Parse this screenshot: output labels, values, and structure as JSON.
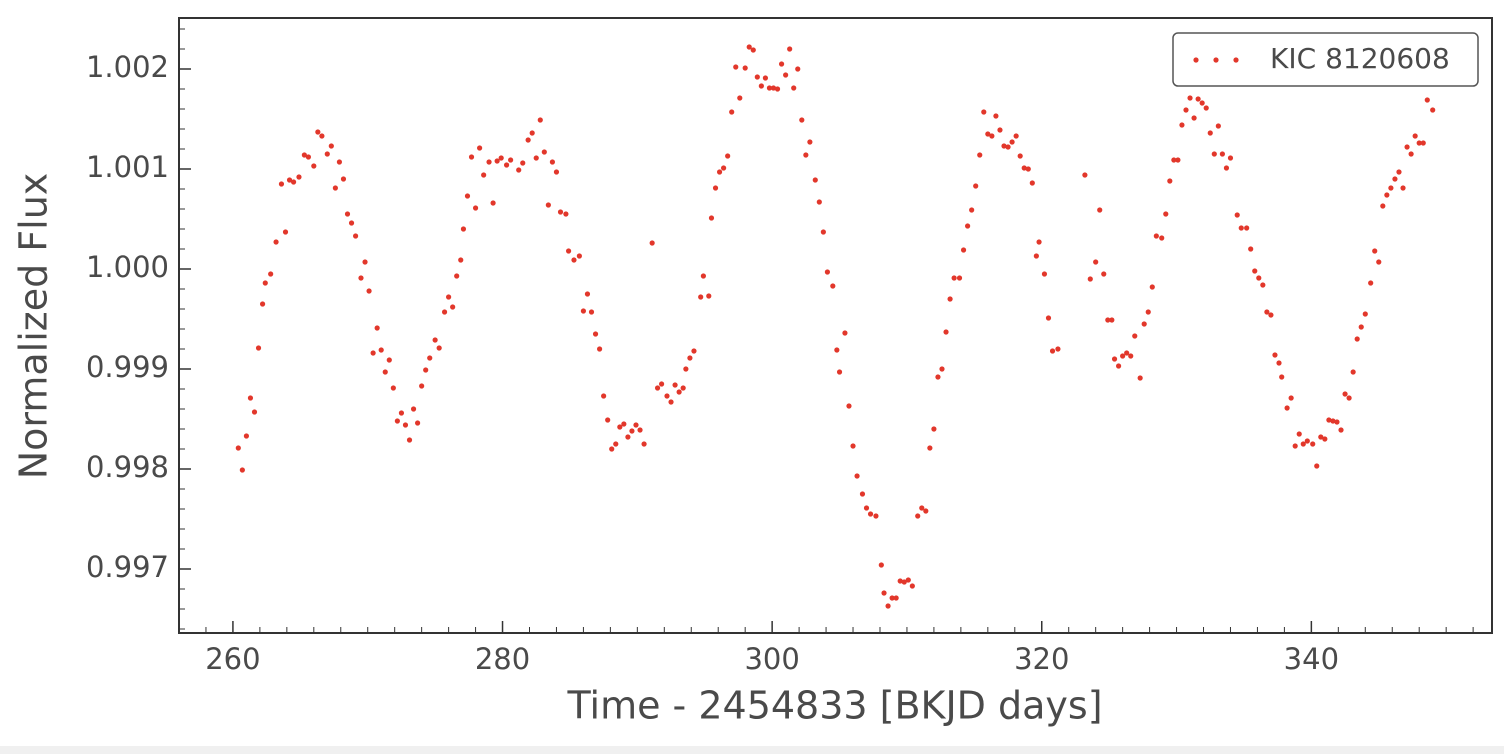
{
  "chart_data": {
    "type": "scatter",
    "xlabel": "Time - 2454833 [BKJD days]",
    "ylabel": "Normalized Flux",
    "xlim": [
      256.0,
      353.4
    ],
    "ylim": [
      0.99636,
      1.00251
    ],
    "xticks": [
      260,
      280,
      300,
      320,
      340
    ],
    "yticks": [
      0.997,
      0.998,
      0.999,
      {
        "value": 1,
        "label": "1.000"
      },
      1.001,
      1.002
    ],
    "xminorticks": [
      256,
      258,
      262,
      264,
      266,
      268,
      270,
      272,
      274,
      276,
      278,
      282,
      284,
      286,
      288,
      290,
      292,
      294,
      296,
      298,
      302,
      304,
      306,
      308,
      310,
      312,
      314,
      316,
      318,
      322,
      324,
      326,
      328,
      330,
      332,
      334,
      336,
      338,
      342,
      344,
      346,
      348,
      350,
      352
    ],
    "yminorticks": [
      0.9964,
      0.9966,
      0.9968,
      0.9972,
      0.9974,
      0.9976,
      0.9978,
      0.9982,
      0.9984,
      0.9986,
      0.9988,
      0.9992,
      0.9994,
      0.9996,
      0.9998,
      1.0002,
      1.0004,
      1.0006,
      1.0008,
      1.0012,
      1.0014,
      1.0016,
      1.0018,
      1.0022,
      1.0024
    ],
    "legend": "upper right",
    "x": [
      260.4,
      260.7,
      261.0,
      261.3,
      261.6,
      261.9,
      262.2,
      262.4,
      262.8,
      263.2,
      263.6,
      263.9,
      264.2,
      264.5,
      264.9,
      265.3,
      265.6,
      266.0,
      266.3,
      266.6,
      267.0,
      267.3,
      267.6,
      267.9,
      268.2,
      268.5,
      268.8,
      269.1,
      269.5,
      269.8,
      270.1,
      270.4,
      270.7,
      271.0,
      271.3,
      271.6,
      271.9,
      272.2,
      272.5,
      272.8,
      273.1,
      273.4,
      273.7,
      274.0,
      274.3,
      274.6,
      275.0,
      275.3,
      275.7,
      276.0,
      276.3,
      276.6,
      276.9,
      277.1,
      277.4,
      277.7,
      278.0,
      278.3,
      278.6,
      279.0,
      279.3,
      279.6,
      279.9,
      280.3,
      280.6,
      281.2,
      281.5,
      281.9,
      282.2,
      282.5,
      282.8,
      283.1,
      283.4,
      283.7,
      284.0,
      284.3,
      284.7,
      284.9,
      285.3,
      285.7,
      286.0,
      286.3,
      286.6,
      286.9,
      287.2,
      287.5,
      287.8,
      288.1,
      288.4,
      288.7,
      289.0,
      289.3,
      289.6,
      289.9,
      290.2,
      290.5,
      291.1,
      291.5,
      291.8,
      292.2,
      292.5,
      292.8,
      293.1,
      293.4,
      293.6,
      293.9,
      294.2,
      294.7,
      294.9,
      295.3,
      295.5,
      295.8,
      296.1,
      296.4,
      296.7,
      297.0,
      297.3,
      297.6,
      298.0,
      298.3,
      298.6,
      298.9,
      299.2,
      299.5,
      299.8,
      300.1,
      300.4,
      300.7,
      301.0,
      301.3,
      301.6,
      301.9,
      302.2,
      302.5,
      302.8,
      303.2,
      303.5,
      303.8,
      304.1,
      304.5,
      304.8,
      305.0,
      305.4,
      305.7,
      306.0,
      306.3,
      306.7,
      307.0,
      307.3,
      307.7,
      308.1,
      308.3,
      308.6,
      308.9,
      309.2,
      309.5,
      309.8,
      310.1,
      310.4,
      310.8,
      311.1,
      311.4,
      311.7,
      312.0,
      312.3,
      312.6,
      312.9,
      313.2,
      313.5,
      313.9,
      314.2,
      314.5,
      314.8,
      315.1,
      315.4,
      315.7,
      316.0,
      316.3,
      316.6,
      316.9,
      317.2,
      317.5,
      317.8,
      318.1,
      318.4,
      318.7,
      319.0,
      319.3,
      319.6,
      319.8,
      320.2,
      320.5,
      320.8,
      321.2,
      323.2,
      323.6,
      324.0,
      324.3,
      324.6,
      324.9,
      325.2,
      325.4,
      325.7,
      326.0,
      326.3,
      326.6,
      326.9,
      327.3,
      327.6,
      327.9,
      328.2,
      328.5,
      328.9,
      329.2,
      329.5,
      329.8,
      330.1,
      330.4,
      330.7,
      331.0,
      331.3,
      331.6,
      331.9,
      332.2,
      332.5,
      332.8,
      333.1,
      333.4,
      333.7,
      334.0,
      334.5,
      334.8,
      335.2,
      335.5,
      335.8,
      336.1,
      336.4,
      336.7,
      337.0,
      337.3,
      337.6,
      337.8,
      338.2,
      338.5,
      338.8,
      339.1,
      339.4,
      339.7,
      340.1,
      340.4,
      340.7,
      341.0,
      341.3,
      341.6,
      341.9,
      342.2,
      342.5,
      342.8,
      343.1,
      343.4,
      343.7,
      344.0,
      344.4,
      344.7,
      345.0,
      345.3,
      345.6,
      345.9,
      346.2,
      346.5,
      346.8,
      347.1,
      347.4,
      347.7,
      348.0,
      348.3,
      348.6,
      349.0
    ],
    "series": [
      {
        "name": "KIC 8120608",
        "color": "#e2372b",
        "values": [
          0.99821,
          0.99799,
          0.99833,
          0.99871,
          0.99857,
          0.99921,
          0.99965,
          0.99986,
          0.99995,
          1.00027,
          1.00085,
          1.00037,
          1.00089,
          1.00087,
          1.00092,
          1.00114,
          1.00112,
          1.00103,
          1.00137,
          1.00133,
          1.00115,
          1.00123,
          1.00081,
          1.00107,
          1.0009,
          1.00055,
          1.00046,
          1.00033,
          0.99991,
          1.00007,
          0.99978,
          0.99916,
          0.99941,
          0.99919,
          0.99897,
          0.99909,
          0.99881,
          0.99848,
          0.99856,
          0.99844,
          0.99829,
          0.9986,
          0.99846,
          0.99883,
          0.99899,
          0.99911,
          0.99929,
          0.99921,
          0.99957,
          0.99972,
          0.99962,
          0.99993,
          1.00009,
          1.0004,
          1.00073,
          1.00112,
          1.00061,
          1.00121,
          1.00094,
          1.00107,
          1.00066,
          1.00108,
          1.00111,
          1.00104,
          1.00109,
          1.00099,
          1.00106,
          1.00129,
          1.00136,
          1.00111,
          1.00149,
          1.00117,
          1.00064,
          1.00107,
          1.00097,
          1.00057,
          1.00055,
          1.00018,
          1.00009,
          1.00013,
          0.99958,
          0.99975,
          0.99957,
          0.99935,
          0.9992,
          0.99873,
          0.99849,
          0.9982,
          0.99825,
          0.99842,
          0.99845,
          0.99832,
          0.99838,
          0.99844,
          0.99839,
          0.99825,
          1.00026,
          0.99881,
          0.99885,
          0.99873,
          0.99867,
          0.99884,
          0.99877,
          0.99881,
          0.999,
          0.99911,
          0.99918,
          0.99972,
          0.99993,
          0.99973,
          1.00051,
          1.00081,
          1.00097,
          1.00101,
          1.00113,
          1.00157,
          1.00202,
          1.00171,
          1.00201,
          1.00222,
          1.00219,
          1.00192,
          1.00183,
          1.00191,
          1.00181,
          1.00181,
          1.0018,
          1.00205,
          1.00194,
          1.0022,
          1.00181,
          1.002,
          1.00149,
          1.00114,
          1.00127,
          1.00089,
          1.00067,
          1.00037,
          0.99997,
          0.99983,
          0.99919,
          0.99897,
          0.99936,
          0.99863,
          0.99823,
          0.99793,
          0.99775,
          0.99761,
          0.99755,
          0.99753,
          0.99704,
          0.99676,
          0.99663,
          0.99671,
          0.99671,
          0.99688,
          0.99687,
          0.99689,
          0.99683,
          0.99753,
          0.99761,
          0.99758,
          0.99821,
          0.9984,
          0.99892,
          0.999,
          0.99937,
          0.9997,
          0.99991,
          0.99991,
          1.00019,
          1.00043,
          1.00059,
          1.00083,
          1.00114,
          1.00157,
          1.00135,
          1.00133,
          1.00153,
          1.00139,
          1.00123,
          1.00122,
          1.00127,
          1.00133,
          1.00113,
          1.00101,
          1.001,
          1.00086,
          1.00013,
          1.00027,
          0.99995,
          0.99951,
          0.99918,
          0.9992,
          1.00094,
          0.9999,
          1.00007,
          1.00059,
          0.99995,
          0.99949,
          0.99949,
          0.9991,
          0.99903,
          0.99913,
          0.99916,
          0.99913,
          0.99933,
          0.99891,
          0.99945,
          0.99957,
          0.99982,
          1.00033,
          1.00031,
          1.00055,
          1.00088,
          1.00109,
          1.00109,
          1.00144,
          1.00159,
          1.00171,
          1.00151,
          1.0017,
          1.00166,
          1.00161,
          1.00136,
          1.00115,
          1.00143,
          1.00115,
          1.00101,
          1.00111,
          1.00054,
          1.00041,
          1.00041,
          1.0002,
          0.99998,
          0.99991,
          0.99984,
          0.99957,
          0.99954,
          0.99914,
          0.99906,
          0.99892,
          0.99861,
          0.99871,
          0.99823,
          0.99835,
          0.99825,
          0.99828,
          0.99825,
          0.99803,
          0.99832,
          0.9983,
          0.99849,
          0.99848,
          0.99847,
          0.99839,
          0.99875,
          0.99871,
          0.99897,
          0.9993,
          0.99942,
          0.99955,
          0.99986,
          1.00018,
          1.00007,
          1.00063,
          1.00074,
          1.00081,
          1.0009,
          1.00097,
          1.00081,
          1.00122,
          1.00115,
          1.00133,
          1.00126,
          1.00126,
          1.00169,
          1.00159
        ]
      }
    ]
  }
}
